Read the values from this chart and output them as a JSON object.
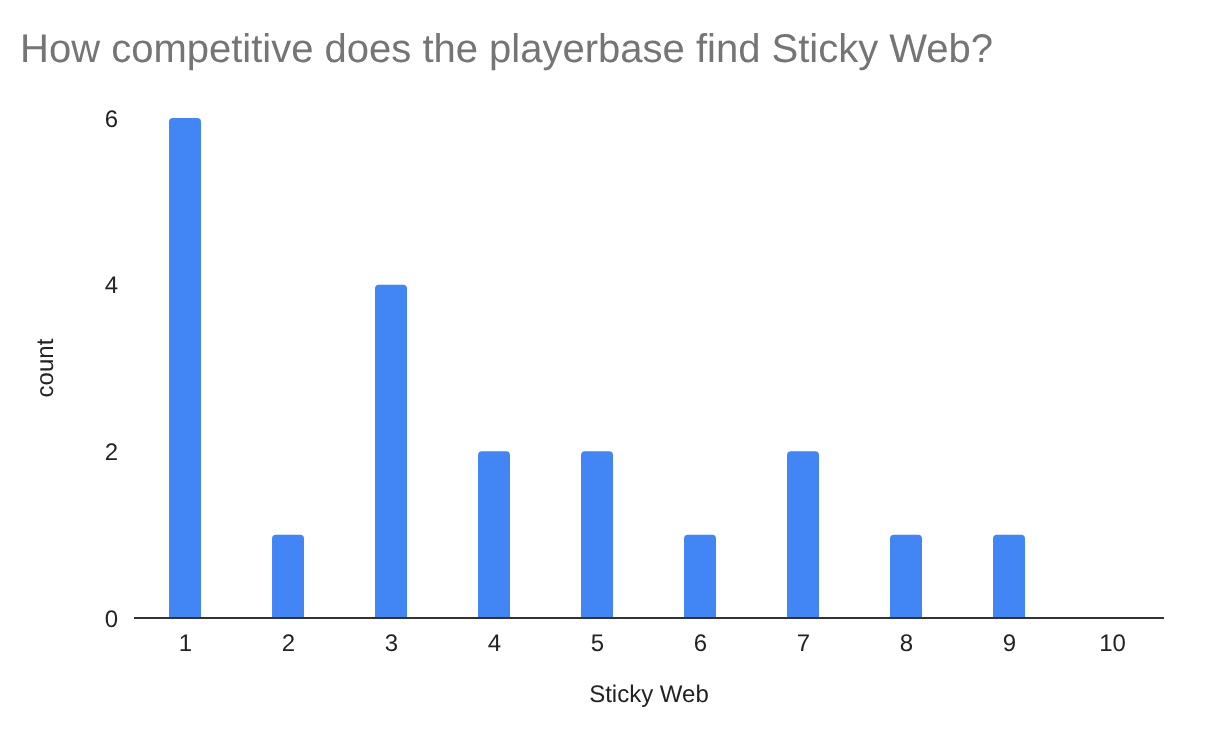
{
  "chart_data": {
    "type": "bar",
    "title": "How competitive does the playerbase find Sticky Web?",
    "xlabel": "Sticky Web",
    "ylabel": "count",
    "categories": [
      "1",
      "2",
      "3",
      "4",
      "5",
      "6",
      "7",
      "8",
      "9",
      "10"
    ],
    "values": [
      6,
      1,
      4,
      2,
      2,
      1,
      2,
      1,
      1,
      0
    ],
    "color": "#4285f4",
    "ylim": [
      0,
      6
    ],
    "yticks": [
      0,
      2,
      4,
      6
    ],
    "grid": false
  }
}
